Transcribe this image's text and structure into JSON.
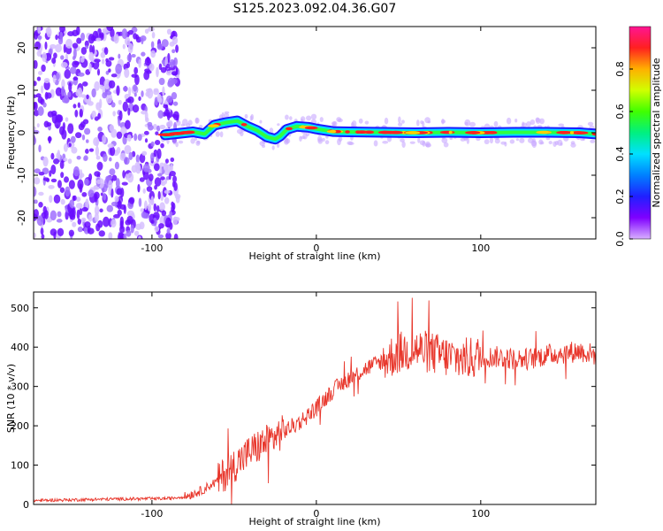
{
  "figure": {
    "title": "S125.2023.092.04.36.G07"
  },
  "chart_data": [
    {
      "type": "heatmap",
      "xlabel": "Height of straight line (km)",
      "ylabel": "Frequency (Hz)",
      "xlim": [
        -172,
        170
      ],
      "ylim": [
        -25,
        25
      ],
      "x_ticks": [
        -100,
        0,
        100
      ],
      "y_ticks": [
        -20,
        -10,
        0,
        10,
        20
      ],
      "grid": false,
      "colorbar": {
        "label": "Normalized spectral amplitude",
        "range": [
          0,
          1
        ],
        "ticks": [
          0.0,
          0.2,
          0.4,
          0.6,
          0.8
        ],
        "colormap": "rainbow (purple-blue-cyan-green-yellow-red-magenta)"
      },
      "ridge": {
        "x": [
          -92,
          -85,
          -75,
          -68,
          -62,
          -55,
          -48,
          -42,
          -36,
          -30,
          -25,
          -22,
          -18,
          -12,
          -5,
          0,
          10,
          20,
          40,
          60,
          80,
          100,
          120,
          140,
          160,
          170
        ],
        "y": [
          -0.5,
          -0.2,
          0.2,
          -0.3,
          1.8,
          2.4,
          2.8,
          1.5,
          0.5,
          -1.0,
          -1.5,
          -0.8,
          0.8,
          1.5,
          1.3,
          0.9,
          0.3,
          0.2,
          0.1,
          0.0,
          0.1,
          0.0,
          0.1,
          0.1,
          0.0,
          -0.3
        ]
      },
      "noise_region_x": [
        -172,
        -90
      ]
    },
    {
      "type": "line",
      "xlabel": "Height of straight line (km)",
      "ylabel": "SNR (10 * v/v)",
      "xlim": [
        -172,
        170
      ],
      "ylim": [
        0,
        540
      ],
      "x_ticks": [
        -100,
        0,
        100
      ],
      "y_ticks": [
        0,
        100,
        200,
        300,
        400,
        500
      ],
      "grid": false,
      "color": "#e8372c",
      "trend": {
        "x": [
          -172,
          -120,
          -90,
          -80,
          -70,
          -60,
          -50,
          -40,
          -30,
          -20,
          -10,
          0,
          10,
          20,
          30,
          40,
          50,
          60,
          70,
          80,
          90,
          100,
          110,
          120,
          130,
          140,
          150,
          160,
          170
        ],
        "y": [
          10,
          14,
          15,
          20,
          35,
          60,
          100,
          135,
          160,
          185,
          210,
          245,
          290,
          320,
          345,
          365,
          385,
          395,
          385,
          375,
          370,
          375,
          375,
          370,
          370,
          380,
          385,
          390,
          380
        ]
      }
    }
  ]
}
